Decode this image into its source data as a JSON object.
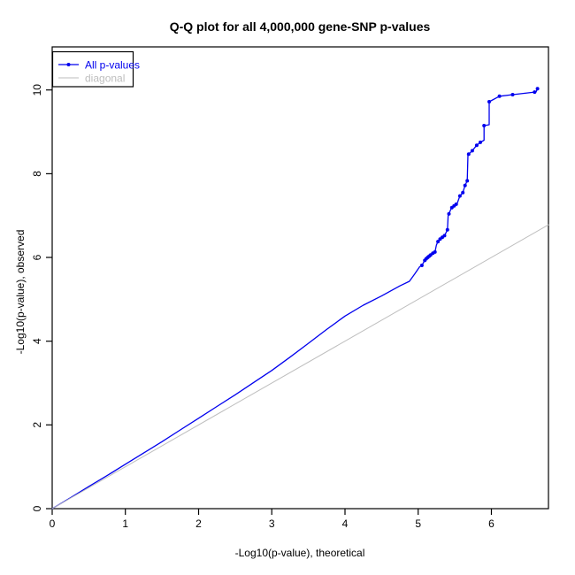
{
  "chart_data": {
    "type": "line",
    "title": "Q-Q plot for all 4,000,000 gene-SNP p-values",
    "xlabel": "-Log10(p-value), theoretical",
    "ylabel": "-Log10(p-value), observed",
    "xlim": [
      0,
      6.78
    ],
    "ylim": [
      0,
      11.03
    ],
    "x_ticks": [
      0,
      1,
      2,
      3,
      4,
      5,
      6
    ],
    "y_ticks": [
      0,
      2,
      4,
      6,
      8,
      10
    ],
    "grid": false,
    "background": "#ffffff",
    "legend": {
      "position": "top-left",
      "entries": [
        {
          "label": "All p-values",
          "color": "#0000ee",
          "marker": "point-line"
        },
        {
          "label": "diagonal",
          "color": "#bebebe",
          "marker": "line"
        }
      ]
    },
    "series": [
      {
        "name": "All p-values",
        "color": "#0000ee",
        "width": 1.3,
        "line": [
          [
            0,
            0
          ],
          [
            0.25,
            0.26
          ],
          [
            0.5,
            0.53
          ],
          [
            0.75,
            0.79
          ],
          [
            1,
            1.06
          ],
          [
            1.25,
            1.33
          ],
          [
            1.5,
            1.6
          ],
          [
            1.75,
            1.88
          ],
          [
            2,
            2.16
          ],
          [
            2.25,
            2.44
          ],
          [
            2.5,
            2.72
          ],
          [
            2.75,
            3.01
          ],
          [
            3,
            3.3
          ],
          [
            3.25,
            3.62
          ],
          [
            3.5,
            3.95
          ],
          [
            3.75,
            4.28
          ],
          [
            4,
            4.6
          ],
          [
            4.25,
            4.86
          ],
          [
            4.5,
            5.08
          ],
          [
            4.75,
            5.32
          ],
          [
            4.88,
            5.43
          ],
          [
            4.95,
            5.6
          ],
          [
            5.02,
            5.78
          ],
          [
            5.05,
            5.81
          ],
          [
            5.08,
            5.9
          ],
          [
            5.1,
            5.95
          ],
          [
            5.13,
            6.0
          ],
          [
            5.16,
            6.05
          ],
          [
            5.19,
            6.08
          ],
          [
            5.23,
            6.13
          ],
          [
            5.25,
            6.3
          ],
          [
            5.27,
            6.38
          ],
          [
            5.3,
            6.44
          ],
          [
            5.33,
            6.48
          ],
          [
            5.36,
            6.52
          ],
          [
            5.4,
            6.66
          ],
          [
            5.41,
            7.0
          ],
          [
            5.42,
            7.04
          ],
          [
            5.45,
            7.17
          ],
          [
            5.47,
            7.2
          ],
          [
            5.5,
            7.24
          ],
          [
            5.53,
            7.28
          ],
          [
            5.57,
            7.47
          ],
          [
            5.61,
            7.55
          ],
          [
            5.64,
            7.72
          ],
          [
            5.67,
            7.83
          ],
          [
            5.68,
            8.45
          ],
          [
            5.69,
            8.47
          ],
          [
            5.74,
            8.55
          ],
          [
            5.8,
            8.68
          ],
          [
            5.85,
            8.75
          ],
          [
            5.9,
            8.8
          ],
          [
            5.9,
            9.15
          ],
          [
            5.97,
            9.17
          ],
          [
            5.97,
            9.72
          ],
          [
            6.11,
            9.85
          ],
          [
            6.29,
            9.89
          ],
          [
            6.59,
            9.95
          ],
          [
            6.61,
            9.95
          ],
          [
            6.63,
            10.03
          ]
        ],
        "points": [
          [
            5.05,
            5.81
          ],
          [
            5.09,
            5.93
          ],
          [
            5.11,
            5.97
          ],
          [
            5.13,
            6.0
          ],
          [
            5.15,
            6.03
          ],
          [
            5.17,
            6.06
          ],
          [
            5.2,
            6.1
          ],
          [
            5.23,
            6.13
          ],
          [
            5.27,
            6.38
          ],
          [
            5.3,
            6.44
          ],
          [
            5.33,
            6.48
          ],
          [
            5.36,
            6.52
          ],
          [
            5.4,
            6.66
          ],
          [
            5.42,
            7.04
          ],
          [
            5.46,
            7.19
          ],
          [
            5.49,
            7.23
          ],
          [
            5.52,
            7.27
          ],
          [
            5.57,
            7.47
          ],
          [
            5.61,
            7.55
          ],
          [
            5.64,
            7.72
          ],
          [
            5.67,
            7.83
          ],
          [
            5.69,
            8.47
          ],
          [
            5.74,
            8.55
          ],
          [
            5.8,
            8.68
          ],
          [
            5.85,
            8.75
          ],
          [
            5.9,
            9.15
          ],
          [
            5.97,
            9.72
          ],
          [
            6.11,
            9.85
          ],
          [
            6.29,
            9.89
          ],
          [
            6.59,
            9.95
          ],
          [
            6.63,
            10.03
          ]
        ]
      },
      {
        "name": "diagonal",
        "color": "#bebebe",
        "width": 1,
        "line": [
          [
            0,
            0
          ],
          [
            6.78,
            6.78
          ]
        ],
        "points": []
      }
    ]
  }
}
